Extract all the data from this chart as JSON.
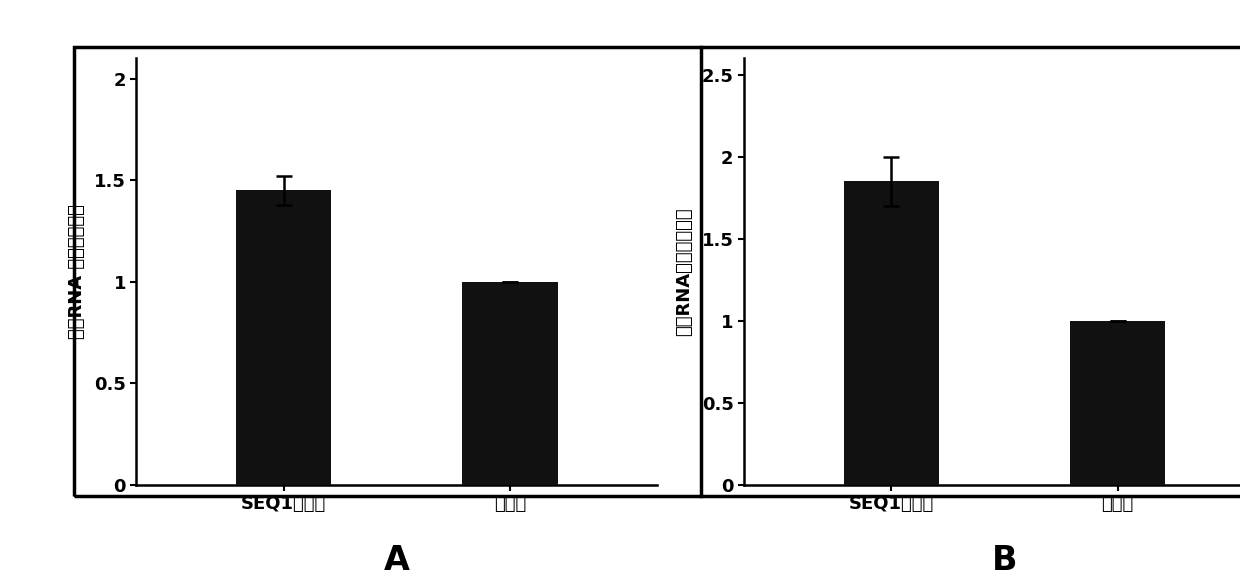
{
  "panel_A": {
    "categories": [
      "SEQ1缺失株",
      "野生型"
    ],
    "values": [
      1.45,
      1.0
    ],
    "errors": [
      0.07,
      0.0
    ],
    "ylim": [
      0,
      2.1
    ],
    "yticks": [
      0,
      0.5,
      1.0,
      1.5,
      2.0
    ],
    "ytick_labels": [
      "0",
      "0.5",
      "1",
      "1.5",
      "2"
    ],
    "ylabel": "信使RNA 相对表达水平",
    "label": "A"
  },
  "panel_B": {
    "categories": [
      "SEQ1缺失株",
      "野生型"
    ],
    "values": [
      1.85,
      1.0
    ],
    "errors": [
      0.15,
      0.0
    ],
    "ylim": [
      0,
      2.6
    ],
    "yticks": [
      0,
      0.5,
      1.0,
      1.5,
      2.0,
      2.5
    ],
    "ytick_labels": [
      "0",
      "0.5",
      "1",
      "1.5",
      "2",
      "2.5"
    ],
    "ylabel": "信使RNA相对表达水平",
    "label": "B"
  },
  "bar_color": "#111111",
  "bar_width": 0.42,
  "background_color": "#ffffff",
  "tick_fontsize": 13,
  "ylabel_fontsize": 13,
  "label_fontsize": 24,
  "xticklabel_fontsize": 13,
  "outer_border_color": "#000000",
  "outer_border_lw": 2.5
}
